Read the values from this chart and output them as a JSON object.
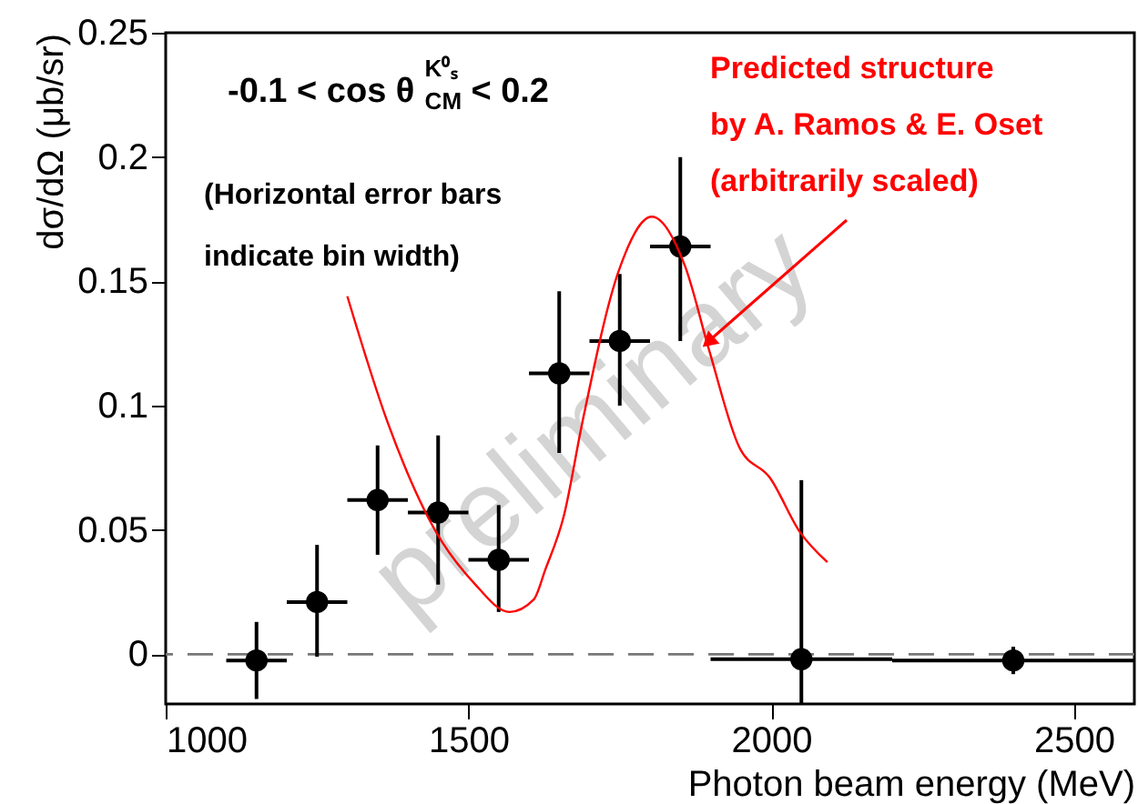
{
  "chart_data": {
    "type": "scatter",
    "title": "-0.1 < cos θ$^{K⁰ₛ}$$_{CM}$ < 0.2",
    "xlabel": "Photon beam energy (MeV)",
    "ylabel": "dσ/dΩ (μb/sr)",
    "annotations": [
      "(Horizontal error bars\nindicate bin width)",
      "preliminary"
    ],
    "xlim": [
      1000,
      2600
    ],
    "xticks": [
      1000,
      1500,
      2000,
      2500
    ],
    "ylim": [
      -0.02,
      0.25
    ],
    "yticks": [
      0,
      0.05,
      0.1,
      0.15,
      0.2,
      0.25
    ],
    "ref_lines": [
      {
        "axis": "y",
        "value": 0,
        "label": null,
        "color": "#777777",
        "line_style": "dashed"
      }
    ],
    "series": [
      {
        "color": "#000000",
        "marker": "circle",
        "x": [
          1150,
          1250,
          1350,
          1450,
          1550,
          1650,
          1750,
          1850,
          2050,
          2400
        ],
        "values": [
          -0.0025,
          0.021,
          0.062,
          0.057,
          0.038,
          0.113,
          0.126,
          0.164,
          -0.002,
          -0.0025
        ],
        "errors": [
          [
            -0.018,
            0.013
          ],
          [
            -0.001,
            0.044
          ],
          [
            0.04,
            0.084
          ],
          [
            0.028,
            0.088
          ],
          [
            0.017,
            0.06
          ],
          [
            0.081,
            0.146
          ],
          [
            0.1,
            0.153
          ],
          [
            0.126,
            0.2
          ],
          [
            -0.02,
            0.07
          ],
          [
            -0.008,
            0.003
          ]
        ],
        "xerrors": [
          [
            1100,
            1200
          ],
          [
            1200,
            1300
          ],
          [
            1300,
            1400
          ],
          [
            1400,
            1500
          ],
          [
            1500,
            1600
          ],
          [
            1600,
            1700
          ],
          [
            1700,
            1800
          ],
          [
            1800,
            1900
          ],
          [
            1900,
            2200
          ],
          [
            2200,
            2600
          ]
        ]
      },
      {
        "type": "line",
        "name": "Predicted structure\nby A. Ramos & E. Oset\n(arbitrarily scaled)",
        "color": "#ff0000",
        "x": [
          1300,
          1367,
          1447,
          1508,
          1568,
          1608,
          1627,
          1658,
          1688,
          1748,
          1803,
          1858,
          1898,
          1948,
          1998,
          2048,
          2093
        ],
        "values": [
          0.144,
          0.093,
          0.049,
          0.029,
          0.017,
          0.022,
          0.034,
          0.056,
          0.093,
          0.154,
          0.176,
          0.156,
          0.122,
          0.083,
          0.071,
          0.049,
          0.037
        ]
      }
    ]
  }
}
